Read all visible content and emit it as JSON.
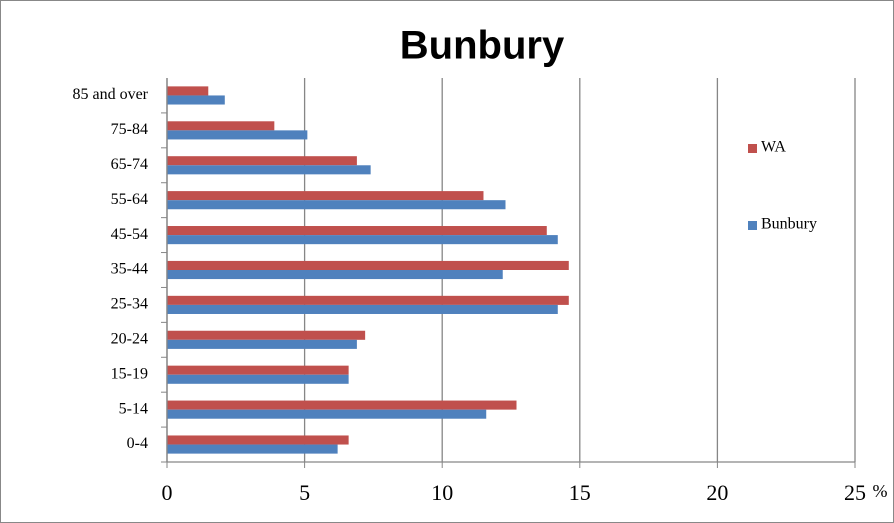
{
  "chart_data": {
    "type": "hbar",
    "title": "Bunbury",
    "x_label": "%",
    "categories": [
      "0-4",
      "5-14",
      "15-19",
      "20-24",
      "25-34",
      "35-44",
      "45-54",
      "55-64",
      "65-74",
      "75-84",
      "85 and over"
    ],
    "series": [
      {
        "name": "WA",
        "color": "#c0504d",
        "values": [
          6.6,
          12.7,
          6.6,
          7.2,
          14.6,
          14.6,
          13.8,
          11.5,
          6.9,
          3.9,
          1.5
        ]
      },
      {
        "name": "Bunbury",
        "color": "#4f81bd",
        "values": [
          6.2,
          11.6,
          6.6,
          6.9,
          14.2,
          12.2,
          14.2,
          12.3,
          7.4,
          5.1,
          2.1
        ]
      }
    ],
    "xlim": [
      0,
      25
    ],
    "xticks": [
      0,
      5,
      10,
      15,
      20,
      25
    ],
    "grid": true,
    "legend": "right"
  }
}
